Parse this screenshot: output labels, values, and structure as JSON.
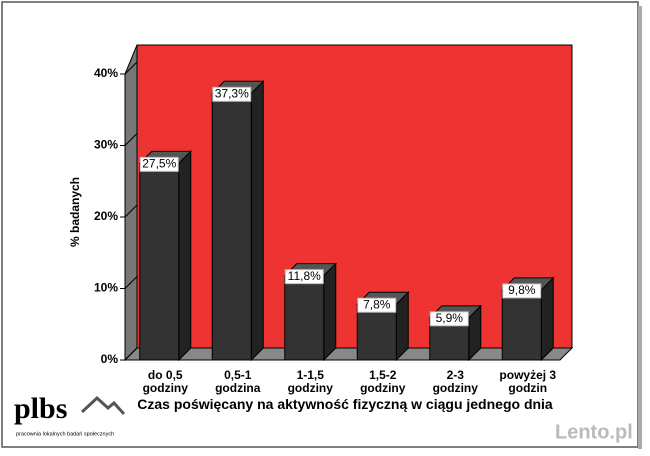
{
  "chart_data": {
    "type": "bar3d",
    "y_label": "% badanych",
    "x_label": "Czas poświęcany na aktywność fizyczną w ciągu jednego dnia",
    "categories": [
      [
        "do 0,5",
        "godziny"
      ],
      [
        "0,5-1",
        "godzina"
      ],
      [
        "1-1,5",
        "godziny"
      ],
      [
        "1,5-2",
        "godziny"
      ],
      [
        "2-3",
        "godziny"
      ],
      [
        "powyżej 3",
        "godzin"
      ]
    ],
    "values": [
      27.5,
      37.3,
      11.8,
      7.8,
      5.9,
      9.8
    ],
    "value_labels": [
      "27,5%",
      "37,3%",
      "11,8%",
      "7,8%",
      "5,9%",
      "9,8%"
    ],
    "color": "#333333",
    "wall_color": "#ee3333",
    "ylim": [
      0,
      40
    ],
    "yticks": [
      {
        "value": 0,
        "label": "0%"
      },
      {
        "value": 10,
        "label": "10%"
      },
      {
        "value": 20,
        "label": "20%"
      },
      {
        "value": 30,
        "label": "30%"
      },
      {
        "value": 40,
        "label": "40%"
      }
    ]
  },
  "logo": {
    "name": "plbs",
    "tagline": "pracownia lokalnych badań społecznych"
  },
  "watermark": "Lento.pl"
}
